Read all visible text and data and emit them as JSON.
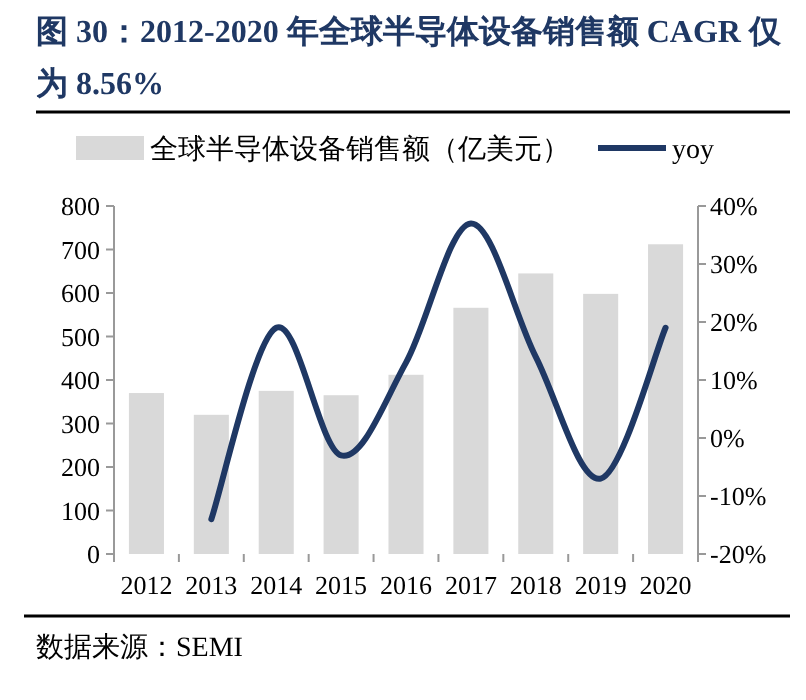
{
  "chart_data": {
    "type": "bar",
    "title": "图 30：2012-2020 年全球半导体设备销售额 CAGR 仅为 8.56%",
    "categories": [
      "2012",
      "2013",
      "2014",
      "2015",
      "2016",
      "2017",
      "2018",
      "2019",
      "2020"
    ],
    "series": [
      {
        "name": "全球半导体设备销售额（亿美元）",
        "color": "#d9d9d9",
        "values": [
          370,
          320,
          375,
          365,
          412,
          566,
          645,
          598,
          712
        ]
      },
      {
        "name": "yoy",
        "type": "line",
        "axis": "y2",
        "color": "#1f3864",
        "values": [
          null,
          -14,
          19,
          -3,
          13,
          37,
          14,
          -7,
          19
        ]
      }
    ],
    "ylim": [
      0,
      800
    ],
    "yticks": [
      0,
      100,
      200,
      300,
      400,
      500,
      600,
      700,
      800
    ],
    "y2lim": [
      -20,
      40
    ],
    "y2ticks": [
      {
        "value": -20,
        "label": "-20%"
      },
      {
        "value": -10,
        "label": "-10%"
      },
      {
        "value": 0,
        "label": "0%"
      },
      {
        "value": 10,
        "label": "10%"
      },
      {
        "value": 20,
        "label": "20%"
      },
      {
        "value": 30,
        "label": "30%"
      },
      {
        "value": 40,
        "label": "40%"
      }
    ],
    "legend": "top",
    "grid": false,
    "marker": "none",
    "annotations": [
      "数据来源：SEMI"
    ]
  }
}
